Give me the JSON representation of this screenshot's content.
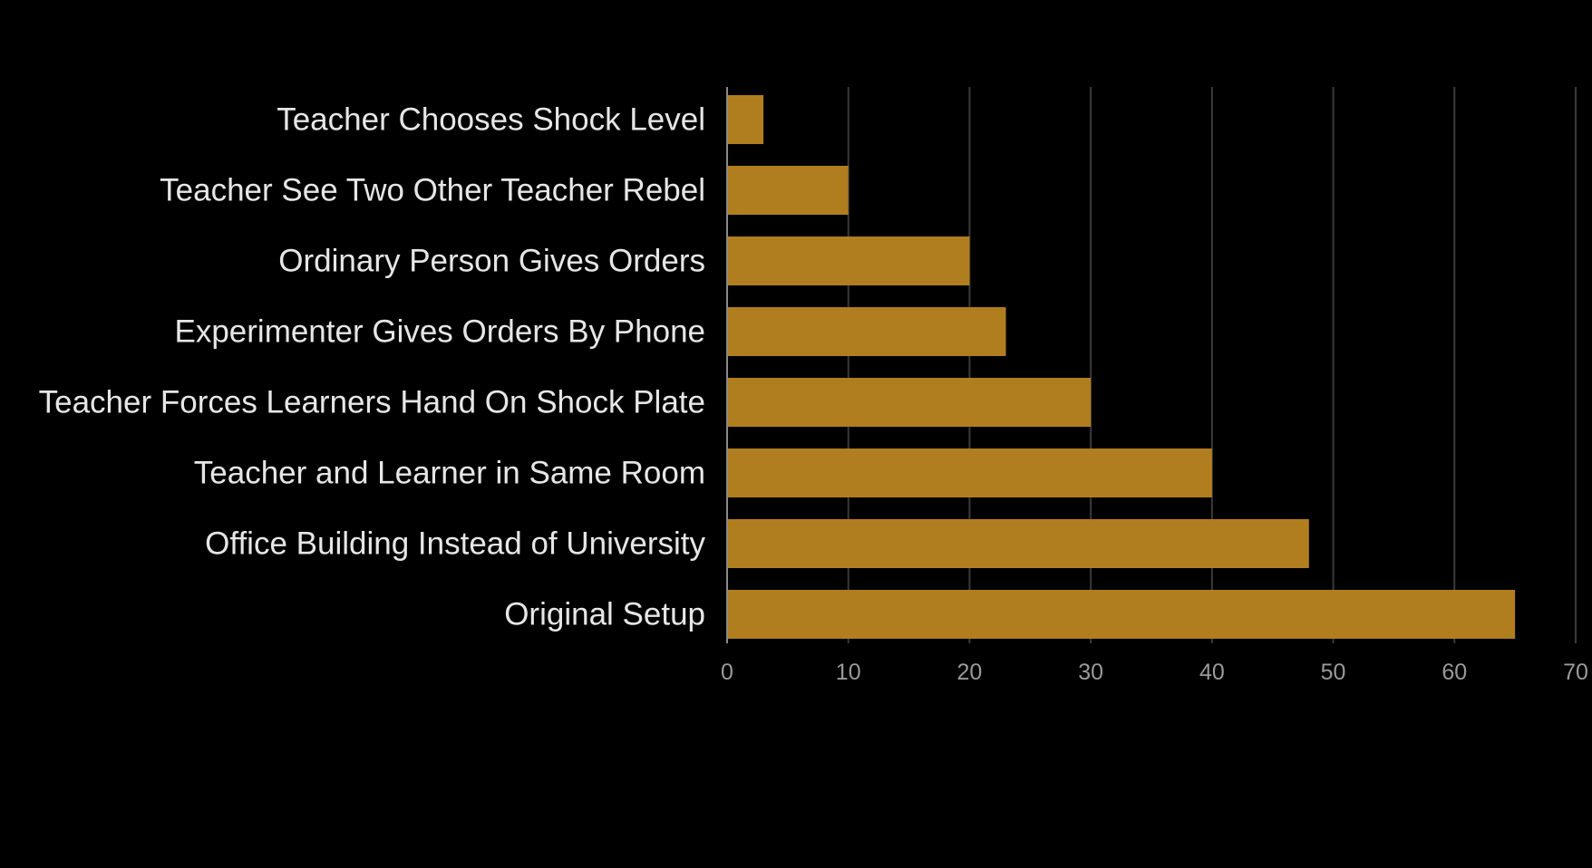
{
  "chart_data": {
    "type": "bar",
    "orientation": "horizontal",
    "title": "",
    "xlabel": "",
    "ylabel": "",
    "categories": [
      "Teacher Chooses Shock Level",
      "Teacher See Two Other Teacher Rebel",
      "Ordinary Person Gives Orders",
      "Experimenter Gives Orders By Phone",
      "Teacher Forces Learners Hand On Shock Plate",
      "Teacher and Learner in Same Room",
      "Office Building Instead of University",
      "Original Setup"
    ],
    "values": [
      3,
      10,
      20,
      23,
      30,
      40,
      48,
      65
    ],
    "xlim": [
      0,
      70
    ],
    "xticks": [
      "0",
      "10",
      "20",
      "30",
      "40",
      "50",
      "60",
      "70"
    ],
    "grid": "vertical",
    "legend": "none",
    "colors": {
      "bar": "#b07e1f",
      "background": "#000000",
      "label": "#e6e6e6",
      "tick": "#9a9a9a",
      "grid": "#3a3a3a"
    }
  }
}
